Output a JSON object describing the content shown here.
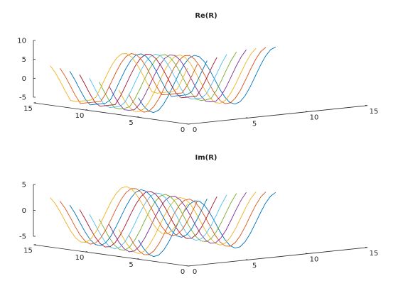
{
  "figure": {
    "colors": [
      "#0072bd",
      "#d95319",
      "#edb120",
      "#7e2f8e",
      "#77ac30",
      "#4dbeee",
      "#a2142f"
    ]
  },
  "chart_data": [
    {
      "type": "line",
      "title": "Re(R)",
      "xlim": [
        0,
        15
      ],
      "ylim": [
        0,
        15
      ],
      "zlim": [
        -5,
        10
      ],
      "xticks": [
        "0",
        "5",
        "10",
        "15"
      ],
      "yticks": [
        "0",
        "5",
        "10",
        "15"
      ],
      "zticks": [
        "-5",
        "0",
        "5",
        "10"
      ],
      "grid": false,
      "legend": "none",
      "n_curves": 10,
      "samples": 28,
      "component": "re"
    },
    {
      "type": "line",
      "title": "Im(R)",
      "xlim": [
        0,
        15
      ],
      "ylim": [
        0,
        15
      ],
      "zlim": [
        -5,
        5
      ],
      "xticks": [
        "0",
        "5",
        "10",
        "15"
      ],
      "yticks": [
        "0",
        "5",
        "10",
        "15"
      ],
      "zticks": [
        "-5",
        "0",
        "5"
      ],
      "grid": false,
      "legend": "none",
      "n_curves": 10,
      "samples": 28,
      "component": "im"
    }
  ]
}
